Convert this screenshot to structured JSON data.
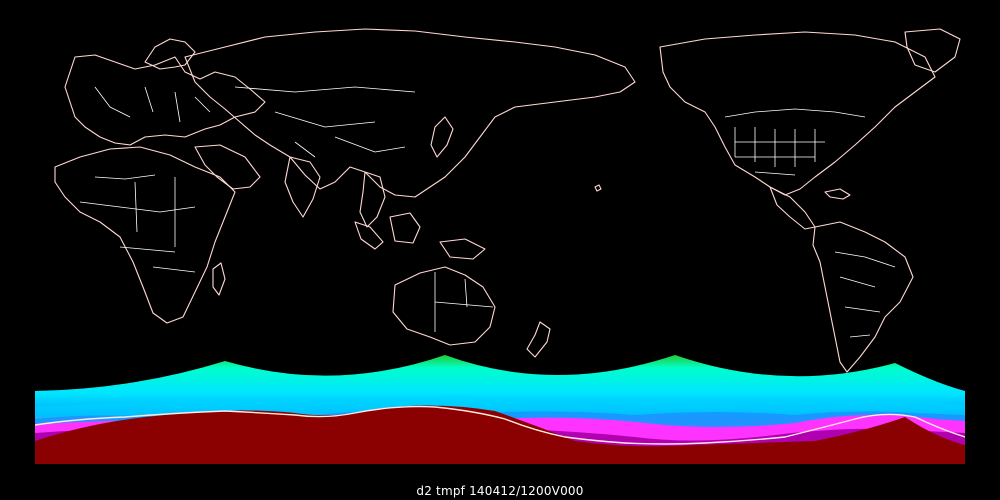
{
  "map": {
    "caption": "d2 tmpf 140412/1200V000",
    "projection": "cylindrical-equidistant",
    "center": "pacific",
    "basemap": "world coastlines and political borders",
    "colors": {
      "background": "#000000",
      "coastline": "#ffd9d3",
      "border": "#ffffff",
      "field_cold_extreme": "#8b0000",
      "field_very_cold": "#b000b0",
      "field_cold": "#ff33ff",
      "field_cool": "#00aaff",
      "field_mild": "#00ffff",
      "field_warm": "#22cc33"
    },
    "field": {
      "variable": "tmpf",
      "coverage": "southern high latitudes"
    }
  }
}
